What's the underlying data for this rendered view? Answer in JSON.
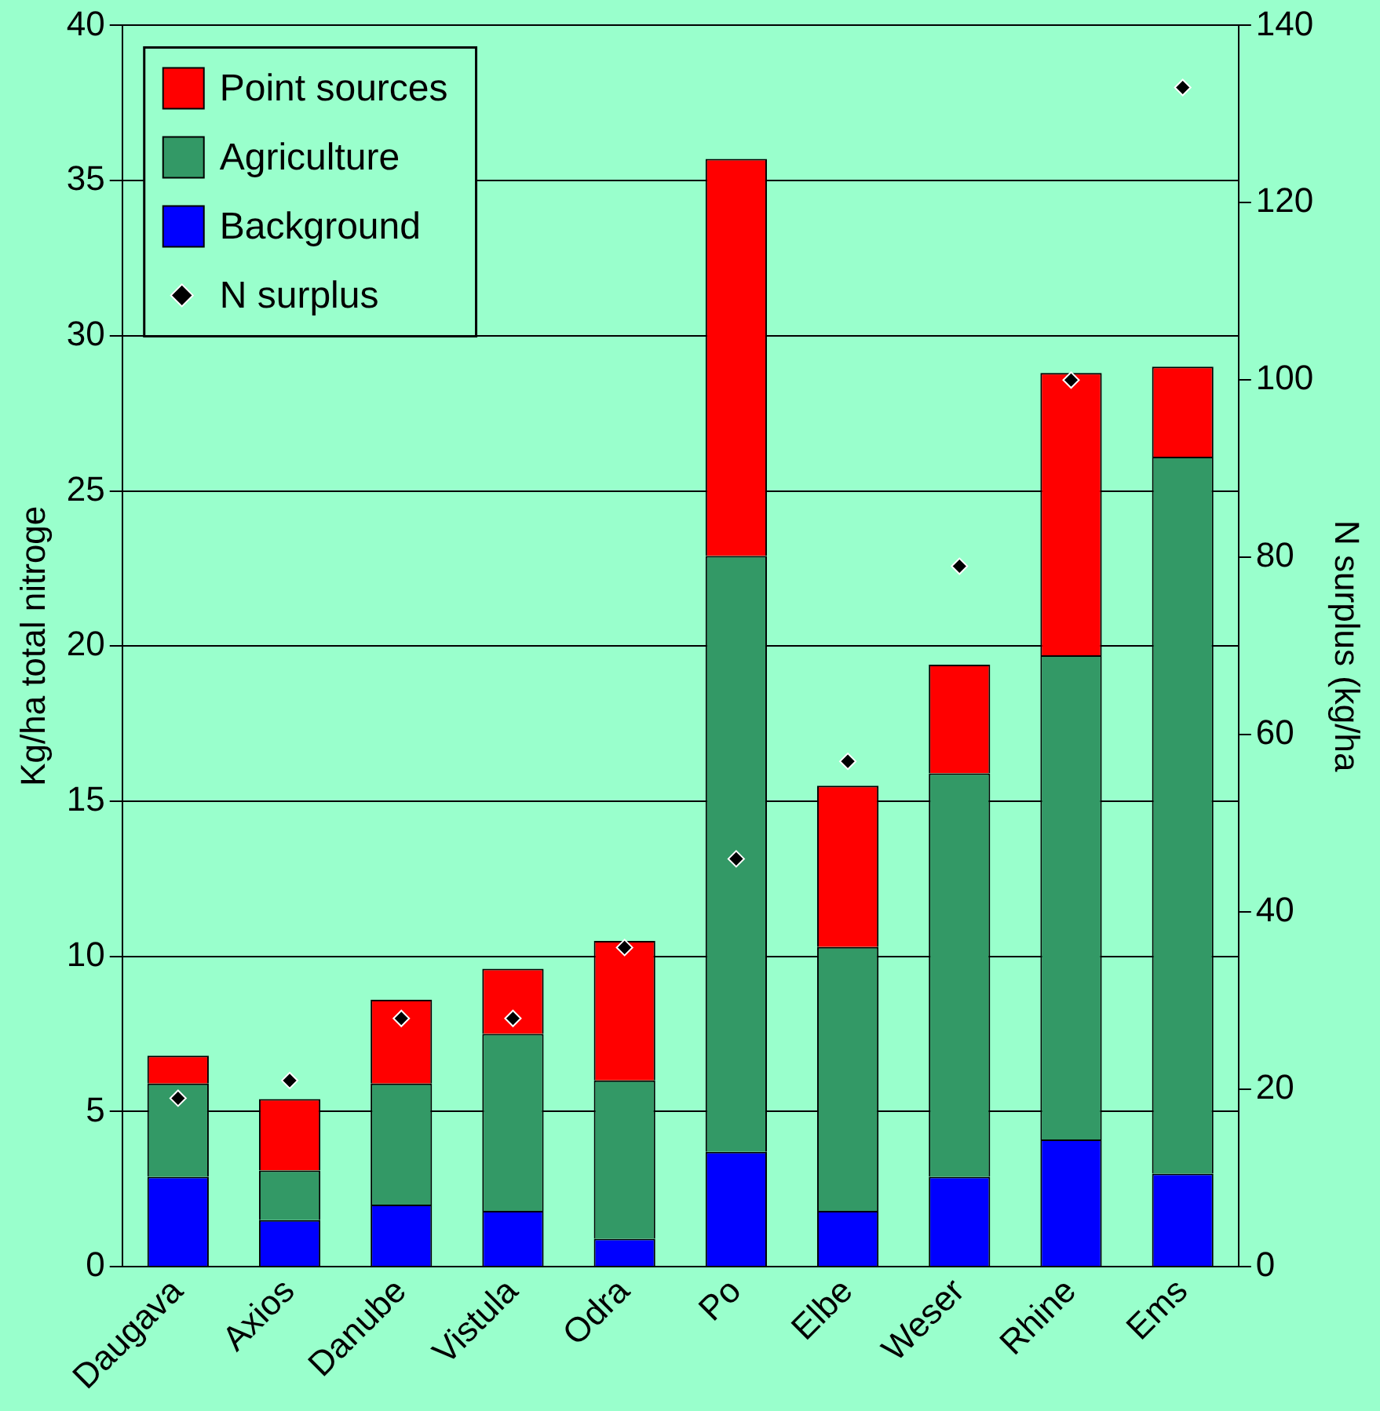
{
  "chart_data": {
    "type": "bar",
    "stacked": true,
    "categories": [
      "Daugava",
      "Axios",
      "Danube",
      "Vistula",
      "Odra",
      "Po",
      "Elbe",
      "Weser",
      "Rhine",
      "Ems"
    ],
    "ylabel": "Kg/ha total nitroge",
    "y2label": "N surplus (kg/ha",
    "series": [
      {
        "name": "N surplus",
        "type": "scatter",
        "axis": "y2",
        "color": "#000000",
        "marker": "diamond",
        "x": [
          "Daugava",
          "Axios",
          "Danube",
          "Vistula",
          "Odra",
          "Po",
          "Elbe",
          "Weser",
          "Rhine",
          "Ems"
        ],
        "values": [
          19,
          21,
          28,
          28,
          36,
          46,
          57,
          79,
          100,
          133
        ]
      },
      {
        "name": "Background",
        "color": "#0000ff",
        "values": [
          2.9,
          1.5,
          2.0,
          1.8,
          0.9,
          3.7,
          1.8,
          2.9,
          4.1,
          3.0
        ]
      },
      {
        "name": "Agriculture",
        "color": "#339966",
        "values": [
          3.0,
          1.6,
          3.9,
          5.7,
          5.1,
          19.2,
          8.5,
          13.0,
          15.6,
          23.1
        ]
      },
      {
        "name": "Point sources",
        "color": "#ff0000",
        "values": [
          0.9,
          2.3,
          2.7,
          2.1,
          4.5,
          12.8,
          5.2,
          3.5,
          9.1,
          2.9
        ]
      }
    ],
    "ylim": [
      0,
      40
    ],
    "yticks": [
      0,
      5,
      10,
      15,
      20,
      25,
      30,
      35,
      40
    ],
    "y2lim": [
      0,
      140
    ],
    "y2ticks": [
      0,
      20,
      40,
      60,
      80,
      100,
      120,
      140
    ],
    "grid": "y",
    "legend": "top left"
  }
}
